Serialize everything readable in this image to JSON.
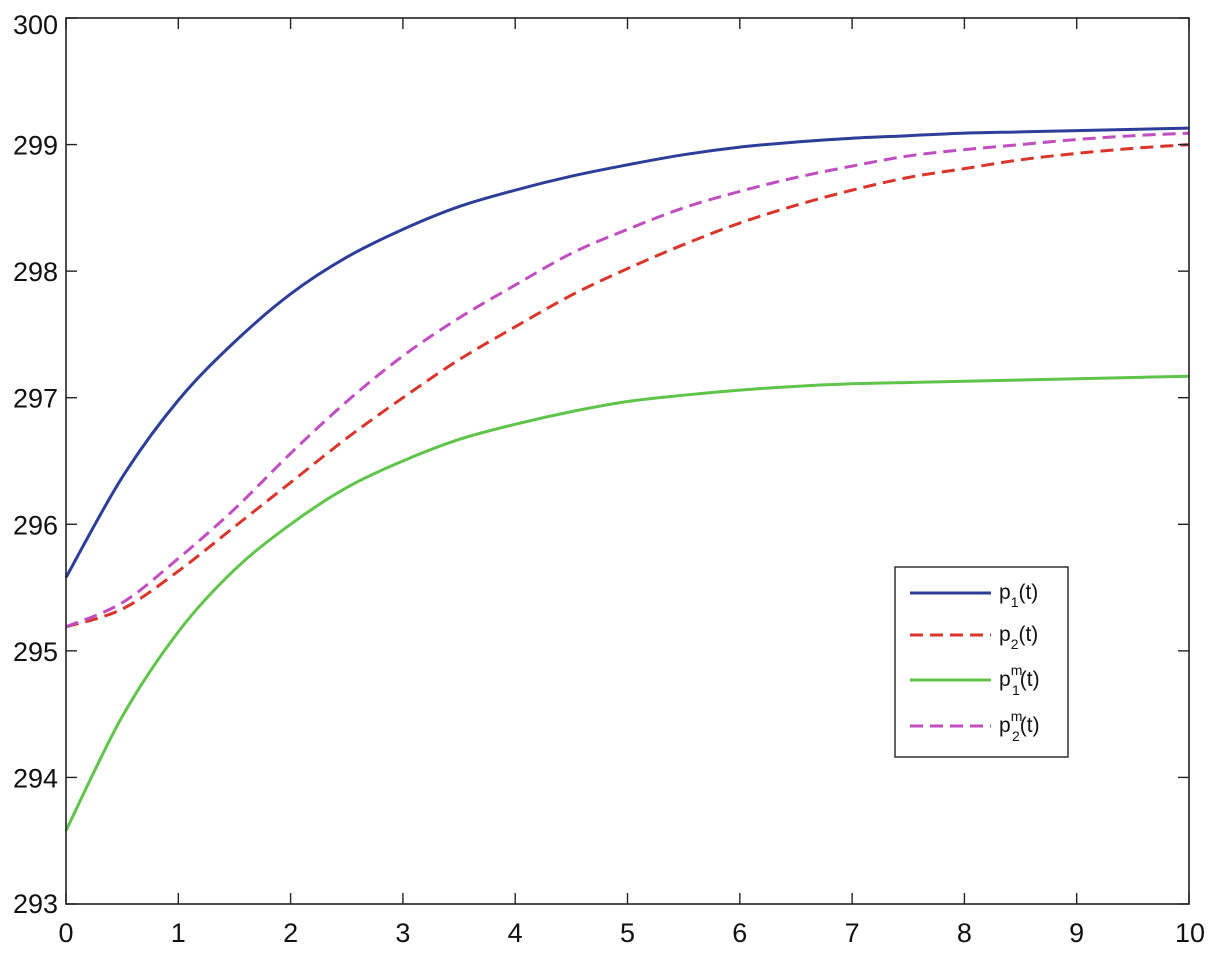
{
  "chart_data": {
    "type": "line",
    "title": "",
    "xlabel": "",
    "ylabel": "",
    "xlim": [
      0,
      10
    ],
    "ylim": [
      293,
      300
    ],
    "xticks": [
      0,
      1,
      2,
      3,
      4,
      5,
      6,
      7,
      8,
      9,
      10
    ],
    "yticks": [
      293,
      294,
      295,
      296,
      297,
      298,
      299,
      300
    ],
    "grid": false,
    "legend_position": "lower-right",
    "x": [
      0,
      0.5,
      1,
      1.5,
      2,
      2.5,
      3,
      3.5,
      4,
      4.5,
      5,
      5.5,
      6,
      6.5,
      7,
      7.5,
      8,
      8.5,
      9,
      9.5,
      10
    ],
    "series": [
      {
        "name": "p1(t)",
        "label_base": "p",
        "label_sub": "1",
        "label_sup": "",
        "label_tail": "(t)",
        "color": "#2d3e9a",
        "dash": "solid",
        "values": [
          295.58,
          296.37,
          296.98,
          297.44,
          297.82,
          298.11,
          298.33,
          298.51,
          298.64,
          298.75,
          298.84,
          298.92,
          298.98,
          299.02,
          299.05,
          299.07,
          299.09,
          299.1,
          299.11,
          299.12,
          299.13
        ]
      },
      {
        "name": "p2(t)",
        "label_base": "p",
        "label_sub": "2",
        "label_sup": "",
        "label_tail": "(t)",
        "color": "#d9352a",
        "dash": "dashed",
        "values": [
          295.19,
          295.33,
          295.63,
          295.98,
          296.33,
          296.68,
          297.0,
          297.3,
          297.56,
          297.81,
          298.02,
          298.21,
          298.38,
          298.52,
          298.64,
          298.74,
          298.81,
          298.88,
          298.93,
          298.97,
          299.0
        ]
      },
      {
        "name": "p1m(t)",
        "label_base": "p",
        "label_sub": "1",
        "label_sup": "m",
        "label_tail": "(t)",
        "color": "#5fc44a",
        "dash": "solid",
        "values": [
          293.58,
          294.48,
          295.15,
          295.64,
          296.0,
          296.29,
          296.5,
          296.67,
          296.79,
          296.89,
          296.97,
          297.02,
          297.06,
          297.09,
          297.11,
          297.12,
          297.13,
          297.14,
          297.15,
          297.16,
          297.17
        ]
      },
      {
        "name": "p2m(t)",
        "label_base": "p",
        "label_sub": "2",
        "label_sup": "m",
        "label_tail": "(t)",
        "color": "#c04ec0",
        "dash": "dashed",
        "values": [
          295.19,
          295.38,
          295.73,
          296.12,
          296.56,
          296.97,
          297.33,
          297.63,
          297.89,
          298.14,
          298.33,
          298.5,
          298.63,
          298.74,
          298.83,
          298.91,
          298.96,
          299.0,
          299.04,
          299.07,
          299.09
        ]
      }
    ]
  }
}
